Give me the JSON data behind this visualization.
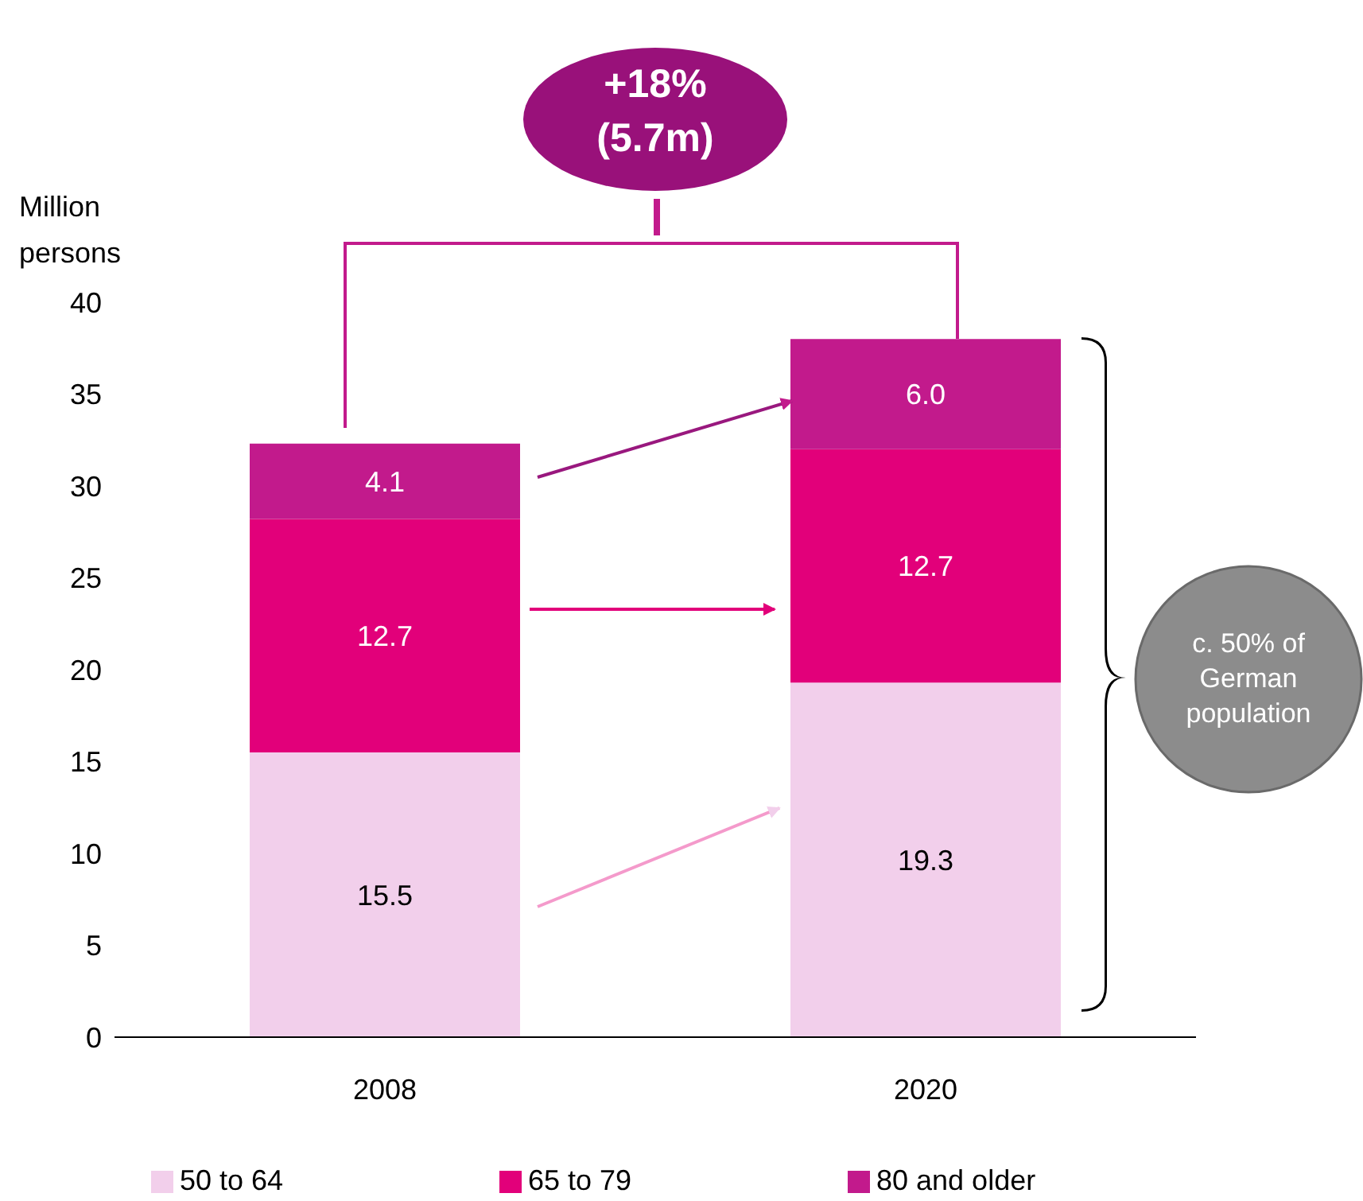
{
  "chart_data": {
    "type": "bar",
    "stacked": true,
    "ylabel": "Million persons",
    "categories": [
      "2008",
      "2020"
    ],
    "series": [
      {
        "name": "50 to 64",
        "color": "#f2cfeb",
        "values": [
          15.5,
          19.3
        ],
        "value_labels": [
          "15.5",
          "19.3"
        ]
      },
      {
        "name": "65 to 79",
        "color": "#e2007a",
        "values": [
          12.7,
          12.7
        ],
        "value_labels": [
          "12.7",
          "12.7"
        ]
      },
      {
        "name": "80 and older",
        "color": "#c21a8c",
        "values": [
          4.1,
          6.0
        ],
        "value_labels": [
          "4.1",
          "6.0"
        ]
      }
    ],
    "ylim": [
      0,
      40
    ],
    "yticks": [
      0,
      5,
      10,
      15,
      20,
      25,
      30,
      35,
      40
    ],
    "legend": "bottom",
    "grid": false,
    "annotations": [
      "+18% (5.7m)",
      "c. 50% of German population"
    ]
  }
}
